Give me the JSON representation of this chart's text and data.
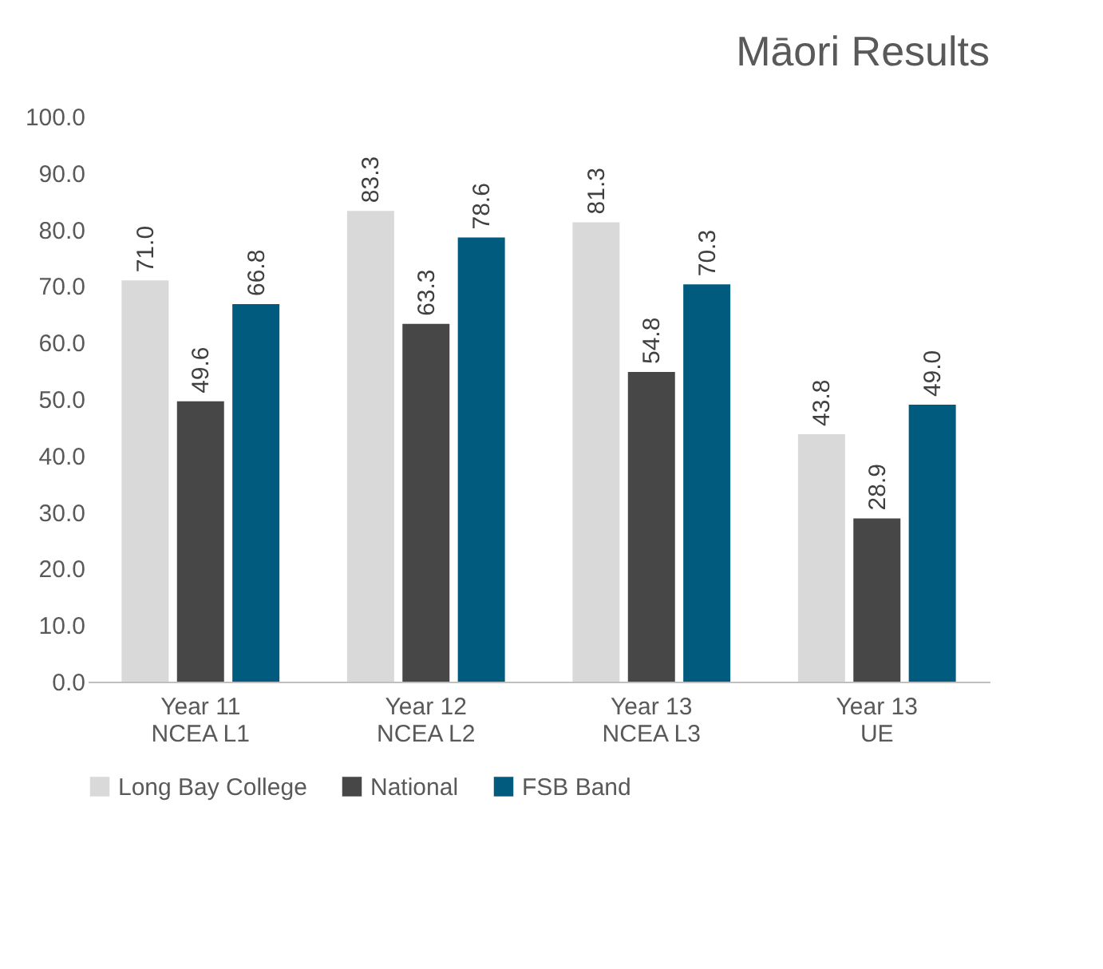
{
  "chart_data": {
    "type": "bar",
    "title": "Māori Results",
    "categories": [
      "Year 11\nNCEA L1",
      "Year 12\nNCEA L2",
      "Year 13\nNCEA L3",
      "Year 13\nUE"
    ],
    "series": [
      {
        "name": "Long Bay College",
        "color": "#d9d9d9",
        "values": [
          71.0,
          83.3,
          81.3,
          43.8
        ]
      },
      {
        "name": "National",
        "color": "#474747",
        "values": [
          49.6,
          63.3,
          54.8,
          28.9
        ]
      },
      {
        "name": "FSB Band",
        "color": "#005b7f",
        "values": [
          66.8,
          78.6,
          70.3,
          49.0
        ]
      }
    ],
    "ylim": [
      0,
      100
    ],
    "yticks": [
      {
        "value": 0,
        "label": "0.0"
      },
      {
        "value": 10,
        "label": "10.0"
      },
      {
        "value": 20,
        "label": "20.0"
      },
      {
        "value": 30,
        "label": "30.0"
      },
      {
        "value": 40,
        "label": "40.0"
      },
      {
        "value": 50,
        "label": "50.0"
      },
      {
        "value": 60,
        "label": "60.0"
      },
      {
        "value": 70,
        "label": "70.0"
      },
      {
        "value": 80,
        "label": "80.0"
      },
      {
        "value": 90,
        "label": "90.0"
      },
      {
        "value": 100,
        "label": "100.0"
      }
    ],
    "value_labels": [
      [
        "71.0",
        "83.3",
        "81.3",
        "43.8"
      ],
      [
        "49.6",
        "63.3",
        "54.8",
        "28.9"
      ],
      [
        "66.8",
        "78.6",
        "70.3",
        "49.0"
      ]
    ],
    "grid": false,
    "legend": "bottom"
  }
}
